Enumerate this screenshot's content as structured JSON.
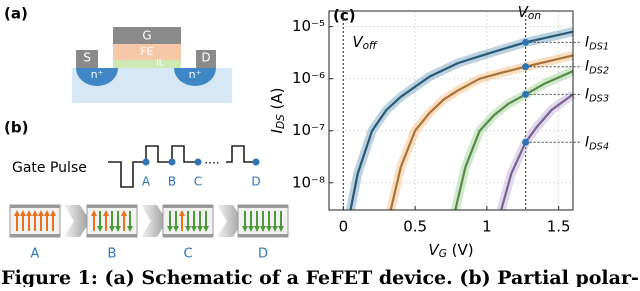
{
  "panel_a": {
    "label": "(a)",
    "gate": "G",
    "fe": "FE",
    "il": "IL",
    "source": "S",
    "drain": "D",
    "source_doping": "n⁺",
    "drain_doping": "n⁺"
  },
  "panel_b": {
    "label": "(b)",
    "gate_pulse": "Gate Pulse",
    "pulse_points": [
      "A",
      "B",
      "C",
      "D"
    ],
    "ellipsis": "....",
    "states": [
      "A",
      "B",
      "C",
      "D"
    ]
  },
  "chart_data": {
    "type": "line",
    "label": "(c)",
    "xlabel": "VG (V)",
    "ylabel": "IDS (A)",
    "xlim": [
      -0.1,
      1.6
    ],
    "ylim": [
      3e-09,
      2e-05
    ],
    "log_y": true,
    "grid": true,
    "xticks": [
      0,
      0.5,
      1,
      1.5
    ],
    "yticks": [
      {
        "value": 1e-05,
        "label": "10⁻⁵"
      },
      {
        "value": 1e-06,
        "label": "10⁻⁶"
      },
      {
        "value": 1e-07,
        "label": "10⁻⁷"
      },
      {
        "value": 1e-08,
        "label": "10⁻⁸"
      }
    ],
    "vlines": [
      {
        "x": 0,
        "label": "Voff"
      },
      {
        "x": 1.27,
        "label": "Von"
      }
    ],
    "series": [
      {
        "name": "IDS1",
        "color": "#3d7fa6",
        "x": [
          0.05,
          0.1,
          0.2,
          0.3,
          0.4,
          0.6,
          0.8,
          1.0,
          1.27,
          1.6
        ],
        "values": [
          3e-09,
          1.5e-08,
          1e-07,
          2.5e-07,
          4.5e-07,
          1.1e-06,
          2e-06,
          3e-06,
          5e-06,
          8e-06
        ]
      },
      {
        "name": "IDS2",
        "color": "#f0a451",
        "x": [
          0.33,
          0.4,
          0.5,
          0.6,
          0.7,
          0.8,
          0.95,
          1.1,
          1.27,
          1.6
        ],
        "values": [
          3e-09,
          2e-08,
          1e-07,
          2.2e-07,
          4e-07,
          6e-07,
          1e-06,
          1.3e-06,
          1.7e-06,
          2.8e-06
        ]
      },
      {
        "name": "IDS3",
        "color": "#7cc46b",
        "x": [
          0.78,
          0.85,
          0.95,
          1.05,
          1.15,
          1.27,
          1.4,
          1.6
        ],
        "values": [
          3e-09,
          2e-08,
          1e-07,
          2e-07,
          3.3e-07,
          5e-07,
          8e-07,
          1.4e-06
        ]
      },
      {
        "name": "IDS4",
        "color": "#aa8fcb",
        "x": [
          1.1,
          1.17,
          1.27,
          1.35,
          1.45,
          1.6
        ],
        "values": [
          3e-09,
          1.5e-08,
          6e-08,
          1.2e-07,
          2.5e-07,
          5e-07
        ]
      }
    ]
  },
  "caption": "Figure 1: (a) Schematic of a FeFET device. (b) Partial polar-"
}
